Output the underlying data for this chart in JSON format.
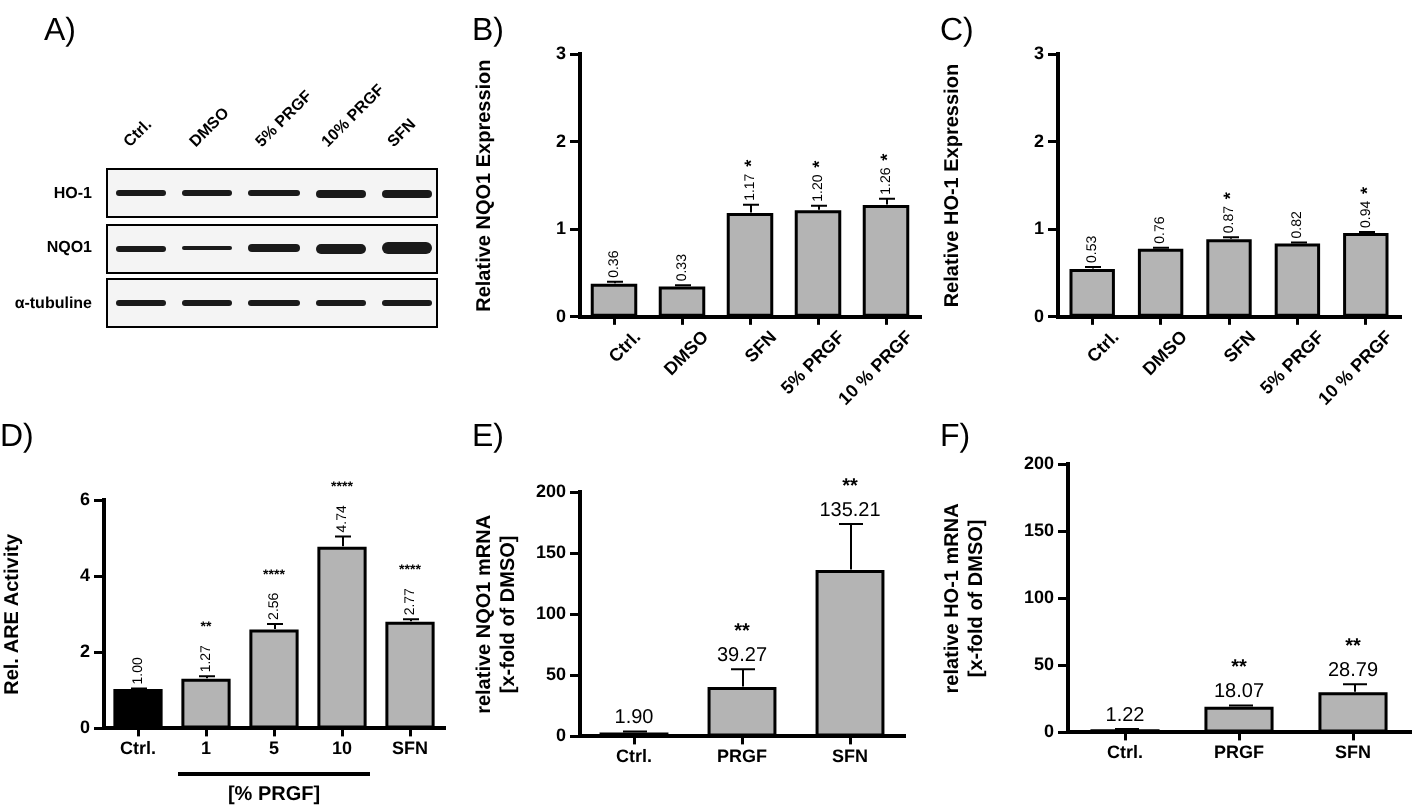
{
  "chart_data": [
    {
      "type": "other",
      "title": "A)",
      "categories": [
        "Ctrl.",
        "DMSO",
        "5% PRGF",
        "10% PRGF",
        "SFN"
      ],
      "y_categories": [
        "HO-1",
        "NQO1",
        "α-tubuline"
      ]
    },
    {
      "type": "bar",
      "title": "B)",
      "ylabel": "Relative NQO1 Expression",
      "categories": [
        "Ctrl.",
        "DMSO",
        "SFN",
        "5% PRGF",
        "10 % PRGF"
      ],
      "values": [
        0.36,
        0.33,
        1.17,
        1.2,
        1.26
      ],
      "value_labels": [
        "0.36",
        "0.33",
        "1.17",
        "1.20",
        "1.26"
      ],
      "errors": [
        [
          0.36,
          0.4
        ],
        [
          0.33,
          0.36
        ],
        [
          1.17,
          1.28
        ],
        [
          1.2,
          1.27
        ],
        [
          1.26,
          1.35
        ]
      ],
      "color": "#b4b4b4",
      "ylim": [
        0,
        3
      ],
      "yticks": [
        0,
        1,
        2,
        3
      ],
      "annotations": [
        {
          "text": "*",
          "x": "SFN",
          "y": 1.28
        },
        {
          "text": "*",
          "x": "5% PRGF",
          "y": 1.27
        },
        {
          "text": "*",
          "x": "10 % PRGF",
          "y": 1.35
        }
      ]
    },
    {
      "type": "bar",
      "title": "C)",
      "ylabel": "Relative HO-1 Expression",
      "categories": [
        "Ctrl.",
        "DMSO",
        "SFN",
        "5% PRGF",
        "10 % PRGF"
      ],
      "values": [
        0.53,
        0.76,
        0.87,
        0.82,
        0.94
      ],
      "value_labels": [
        "0.53",
        "0.76",
        "0.87",
        "0.82",
        "0.94"
      ],
      "errors": [
        [
          0.53,
          0.57
        ],
        [
          0.76,
          0.79
        ],
        [
          0.87,
          0.91
        ],
        [
          0.82,
          0.85
        ],
        [
          0.94,
          0.97
        ]
      ],
      "color": "#b4b4b4",
      "ylim": [
        0,
        3
      ],
      "yticks": [
        0,
        1,
        2,
        3
      ],
      "annotations": [
        {
          "text": "*",
          "x": "SFN",
          "y": 0.91
        },
        {
          "text": "*",
          "x": "10 % PRGF",
          "y": 0.97
        }
      ]
    },
    {
      "type": "bar",
      "title": "D)",
      "ylabel": "Rel. ARE Activity",
      "xlabel": "[% PRGF]",
      "categories": [
        "Ctrl.",
        "1",
        "5",
        "10",
        "SFN"
      ],
      "values": [
        1.0,
        1.27,
        2.56,
        4.74,
        2.77
      ],
      "value_labels": [
        "1.00",
        "1.27",
        "2.56",
        "4.74",
        "2.77"
      ],
      "errors": [
        [
          1.0,
          1.05
        ],
        [
          1.27,
          1.37
        ],
        [
          2.56,
          2.75
        ],
        [
          4.74,
          5.05
        ],
        [
          2.77,
          2.87
        ]
      ],
      "colors": [
        "#000000",
        "#b4b4b4",
        "#b4b4b4",
        "#b4b4b4",
        "#b4b4b4"
      ],
      "ylim": [
        0,
        6
      ],
      "yticks": [
        0,
        2,
        4,
        6
      ],
      "annotations": [
        {
          "text": "**",
          "x": "1",
          "y": 1.37
        },
        {
          "text": "****",
          "x": "5",
          "y": 2.75
        },
        {
          "text": "****",
          "x": "10",
          "y": 5.05
        },
        {
          "text": "****",
          "x": "SFN",
          "y": 2.87
        }
      ]
    },
    {
      "type": "bar",
      "title": "E)",
      "ylabel": "relative NQO1 mRNA\n[x-fold of DMSO]",
      "categories": [
        "Ctrl.",
        "PRGF",
        "SFN"
      ],
      "values": [
        1.9,
        39.27,
        135.21
      ],
      "value_labels": [
        "1.90",
        "39.27",
        "135.21"
      ],
      "errors": [
        [
          1.9,
          4
        ],
        [
          39.27,
          55
        ],
        [
          135.21,
          174
        ]
      ],
      "color": "#b4b4b4",
      "ylim": [
        0,
        200
      ],
      "yticks": [
        0,
        50,
        100,
        150,
        200
      ],
      "annotations": [
        {
          "text": "**",
          "x": "PRGF",
          "y": 55
        },
        {
          "text": "**",
          "x": "SFN",
          "y": 174
        }
      ]
    },
    {
      "type": "bar",
      "title": "F)",
      "ylabel": "relative HO-1 mRNA\n[x-fold of DMSO]",
      "categories": [
        "Ctrl.",
        "PRGF",
        "SFN"
      ],
      "values": [
        1.22,
        18.07,
        28.79
      ],
      "value_labels": [
        "1.22",
        "18.07",
        "28.79"
      ],
      "errors": [
        [
          1.22,
          2.5
        ],
        [
          18.07,
          20
        ],
        [
          28.79,
          36
        ]
      ],
      "color": "#b4b4b4",
      "ylim": [
        0,
        200
      ],
      "yticks": [
        0,
        50,
        100,
        150,
        200
      ],
      "annotations": [
        {
          "text": "**",
          "x": "PRGF",
          "y": 20
        },
        {
          "text": "**",
          "x": "SFN",
          "y": 36
        }
      ]
    }
  ]
}
